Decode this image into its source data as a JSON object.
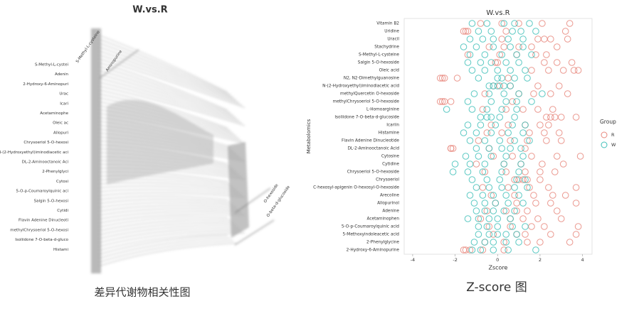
{
  "left_figure": {
    "title": "W.vs.R",
    "labels": [
      "S-Methyl-L-cystei",
      "Adenin",
      "2-Hydroxy-6-Aminopuri",
      "Urac",
      "Icari",
      "Acetaminophe",
      "Oleic ac",
      "Allopuri",
      "Chrysoeriol 5-O-hexosi",
      "N-(2-Hydroxyethyl)iminodiacetic aci",
      "DL-2-Aminooctanoic Aci",
      "2-Phenylglyci",
      "Cytosi",
      "5-O-p-Coumaroylquinic aci",
      "Salgin 5-O-hexosi",
      "Cytidi",
      "Flavin Adenine Dinucleoti",
      "methylChrysoeriol 5-O-hexosi",
      "Isoliidone 7-O-beta-d-gluco",
      "Histami"
    ],
    "top_labels": [
      "S-Methyl-L-cysteine",
      "Aminopurine"
    ],
    "side_labels": [
      "O-hexoside",
      "O-beta-d-glucoside"
    ],
    "caption": "差异代谢物相关性图"
  },
  "chart_data": {
    "type": "scatter",
    "title": "W.vs.R",
    "x_label": "Zscore",
    "y_label": "Metabolomics",
    "caption": "Z-score 图",
    "legend_title": "Group",
    "legend": "right",
    "categories": [
      "Vitamin B2",
      "Uridine",
      "Uracil",
      "Stachydrine",
      "S-Methyl-L-cysteine",
      "Salgin 5-O-hexoside",
      "Oleic acid",
      "N2, N2-Dimethylguanosine",
      "N-(2-Hydroxyethyl)iminodiacetic acid",
      "methylQuercetin O-hexoside",
      "methylChrysoeriol 5-O-hexoside",
      "L-Homoarginine",
      "Isoliidone 7-O-beta-d-glucoside",
      "Icariin",
      "Histamine",
      "Flavin Adenine Dinucleotide",
      "DL-2-Aminooctanoic Acid",
      "Cytosine",
      "Cytidine",
      "Chrysoeriol 5-O-hexoside",
      "Chrysoeriol",
      "C-hexosyl-apigenin O-hexosyl-O-hexoside",
      "Arecoline",
      "Allopurinol",
      "Adenine",
      "Acetaminophen",
      "5-O-p-Coumaroylquinic acid",
      "5-Methoxyindoleacetic acid",
      "2-Phenylglycine",
      "2-Hydroxy-6-Aminopurine"
    ],
    "series": [
      {
        "name": "R",
        "color": "#e8877c",
        "values": [
          [
            -0.8,
            0.2,
            2.1,
            3.4,
            1.0
          ],
          [
            -1.6,
            -1.4,
            -1.5,
            0.4,
            3.2
          ],
          [
            1.9,
            2.2,
            2.5,
            3.3,
            0.2
          ],
          [
            -0.4,
            0.3,
            1.0,
            1.6,
            2.8
          ],
          [
            -1.4,
            0.1,
            0.9,
            1.8,
            2.3
          ],
          [
            -0.1,
            0.0,
            2.2,
            2.8,
            3.5
          ],
          [
            1.6,
            2.4,
            3.1,
            3.6,
            3.8
          ],
          [
            -2.6,
            -2.5,
            -2.7,
            -1.9,
            0.5
          ],
          [
            -0.2,
            0.1,
            0.6,
            1.9,
            2.9
          ],
          [
            -0.6,
            1.0,
            1.7,
            2.5,
            3.3
          ],
          [
            -2.7,
            -2.6,
            -2.5,
            -2.2,
            0.7
          ],
          [
            -0.7,
            0.4,
            1.2,
            1.9,
            2.6
          ],
          [
            2.3,
            2.5,
            2.7,
            3.0,
            3.7
          ],
          [
            -0.3,
            0.5,
            1.3,
            2.0,
            2.4
          ],
          [
            -0.5,
            0.2,
            1.5,
            2.2,
            2.9
          ],
          [
            -0.9,
            0.6,
            1.4,
            2.3,
            3.0
          ],
          [
            -2.2,
            -2.1,
            -2.2,
            -0.4,
            1.3
          ],
          [
            -0.2,
            0.7,
            1.6,
            2.8,
            3.9
          ],
          [
            -1.0,
            0.3,
            1.1,
            2.1,
            3.1
          ],
          [
            -0.6,
            0.4,
            1.3,
            2.0,
            2.7
          ],
          [
            0.8,
            1.0,
            1.2,
            1.4,
            2.0
          ],
          [
            -0.7,
            0.5,
            1.5,
            2.4,
            3.7
          ],
          [
            -0.3,
            0.8,
            1.7,
            2.6,
            3.2
          ],
          [
            -0.1,
            0.9,
            1.8,
            2.5,
            3.7
          ],
          [
            -0.5,
            0.4,
            0.9,
            1.4,
            2.8
          ],
          [
            -0.8,
            0.6,
            1.2,
            1.9,
            3.0
          ],
          [
            -0.4,
            0.6,
            1.6,
            2.2,
            3.8
          ],
          [
            -0.2,
            0.9,
            1.3,
            2.5,
            3.7
          ],
          [
            -0.6,
            0.3,
            1.4,
            2.0,
            3.4
          ],
          [
            -1.6,
            -1.5,
            -1.3,
            -0.7,
            0.3
          ]
        ]
      },
      {
        "name": "W",
        "color": "#3fbfb8",
        "values": [
          [
            -1.2,
            -0.5,
            0.3,
            0.8,
            1.5
          ],
          [
            -0.9,
            -0.3,
            0.7,
            1.1,
            1.8
          ],
          [
            -1.3,
            -0.7,
            -0.2,
            0.5,
            1.2
          ],
          [
            -1.6,
            -1.0,
            -0.2,
            0.6,
            1.2
          ],
          [
            -1.3,
            -0.6,
            0.2,
            0.9,
            1.6
          ],
          [
            -1.4,
            -0.8,
            -0.3,
            0.4,
            1.0
          ],
          [
            -1.2,
            -0.6,
            0.0,
            0.6,
            1.3
          ],
          [
            -0.9,
            0.0,
            0.2,
            0.8,
            1.4
          ],
          [
            -0.4,
            -0.2,
            0.0,
            0.3,
            0.6
          ],
          [
            -1.1,
            -0.4,
            0.3,
            1.0,
            2.1
          ],
          [
            -1.4,
            -0.3,
            0.4,
            0.9,
            1.6
          ],
          [
            -2.4,
            -1.2,
            -0.5,
            0.2,
            0.9
          ],
          [
            -0.8,
            -0.5,
            -0.3,
            0.1,
            0.8
          ],
          [
            -1.4,
            -0.8,
            -0.1,
            0.7,
            1.3
          ],
          [
            -1.6,
            -1.0,
            -0.3,
            0.5,
            1.2
          ],
          [
            -1.3,
            -0.6,
            0.1,
            0.8,
            1.5
          ],
          [
            -1.0,
            -0.4,
            0.2,
            0.6,
            1.1
          ],
          [
            -1.5,
            -0.9,
            -0.3,
            0.4,
            1.2
          ],
          [
            -2.0,
            -1.3,
            -0.6,
            0.3,
            1.1
          ],
          [
            -2.1,
            -1.4,
            -0.7,
            0.2,
            1.0
          ],
          [
            -1.2,
            -0.5,
            0.1,
            0.9,
            1.3
          ],
          [
            -1.0,
            -0.4,
            0.2,
            0.8,
            1.4
          ],
          [
            -1.3,
            -0.7,
            -0.2,
            0.4,
            1.0
          ],
          [
            -1.1,
            -0.6,
            -0.1,
            0.5,
            1.2
          ],
          [
            -1.0,
            -0.6,
            -0.2,
            0.3,
            0.8
          ],
          [
            -1.4,
            -0.9,
            -0.4,
            0.0,
            0.6
          ],
          [
            -0.9,
            -0.5,
            0.0,
            0.7,
            1.3
          ],
          [
            -0.9,
            -0.4,
            0.0,
            0.4,
            0.9
          ],
          [
            -1.1,
            -0.6,
            -0.2,
            0.4,
            1.0
          ],
          [
            -1.2,
            -0.8,
            -0.2,
            0.5,
            1.8
          ]
        ]
      }
    ],
    "xlim": [
      -4.4,
      4.45
    ],
    "xticks": [
      -4,
      -2,
      0,
      2,
      4
    ]
  }
}
